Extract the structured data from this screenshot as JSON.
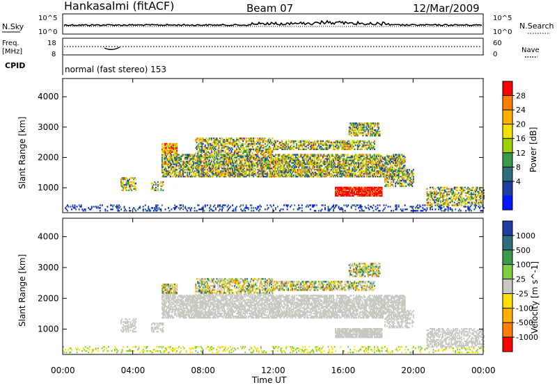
{
  "header": {
    "radar": "Hankasalmi (fitACF)",
    "beam": "Beam 07",
    "date": "12/Mar/2009"
  },
  "noise_panel": {
    "left_label": "N.Sky",
    "right_label": "N.Search",
    "left_ticks": [
      "10^5",
      "10^0"
    ],
    "right_ticks": [
      "10^5",
      "10^0"
    ]
  },
  "freq_panel": {
    "left_label_1": "Freq.",
    "left_label_2": "[MHz]",
    "left_ticks": [
      "18",
      "8"
    ],
    "right_label": "Nave",
    "right_ticks": [
      "60",
      "0"
    ],
    "cpid_label": "CPID"
  },
  "cpid_text": "normal (fast stereo) 153",
  "chart_data": [
    {
      "type": "heatmap",
      "name_label": "Power [dB]",
      "ylabel": "Slant Range [km]",
      "ylim": [
        180,
        4600
      ],
      "yticks": [
        "1000",
        "2000",
        "3000",
        "4000"
      ],
      "colorbar": {
        "labels": [
          "28",
          "24",
          "20",
          "16",
          "12",
          "8",
          "4"
        ],
        "colors": [
          "#ff0000",
          "#ff7f00",
          "#ffb000",
          "#f2e000",
          "#9fd000",
          "#3a9a4a",
          "#2d6e7e",
          "#1e3ea0",
          "#0018ff"
        ]
      },
      "features_km": [
        {
          "t0": 5.6,
          "t1": 19.5,
          "r0": 1300,
          "r1": 2100,
          "level": "moderate"
        },
        {
          "t0": 15.5,
          "t1": 18.2,
          "r0": 750,
          "r1": 1000,
          "level": "strong"
        },
        {
          "t0": 16.3,
          "t1": 18.1,
          "r0": 2700,
          "r1": 3100,
          "level": "moderate"
        },
        {
          "t0": 0.0,
          "t1": 24.0,
          "r0": 180,
          "r1": 400,
          "level": "weak"
        }
      ]
    },
    {
      "type": "heatmap",
      "name_label": "Velocity [m s^-1]",
      "ylabel": "Slant Range [km]",
      "ylim": [
        180,
        4600
      ],
      "yticks": [
        "1000",
        "2000",
        "3000",
        "4000"
      ],
      "colorbar": {
        "labels": [
          "1000",
          "500",
          "100",
          "25",
          "-25",
          "-100",
          "-500",
          "-1000"
        ],
        "colors": [
          "#1e3ea0",
          "#2d6e7e",
          "#3a9a4a",
          "#7fd040",
          "#c8c8c0",
          "#ffe000",
          "#ffb000",
          "#ff7f00",
          "#ff0000"
        ]
      },
      "ground_scatter": true
    }
  ],
  "xaxis": {
    "ticks": [
      "00:00",
      "04:00",
      "08:00",
      "12:00",
      "16:00",
      "20:00",
      "00:00"
    ],
    "label": "Time UT",
    "xlim": [
      0,
      24
    ]
  }
}
